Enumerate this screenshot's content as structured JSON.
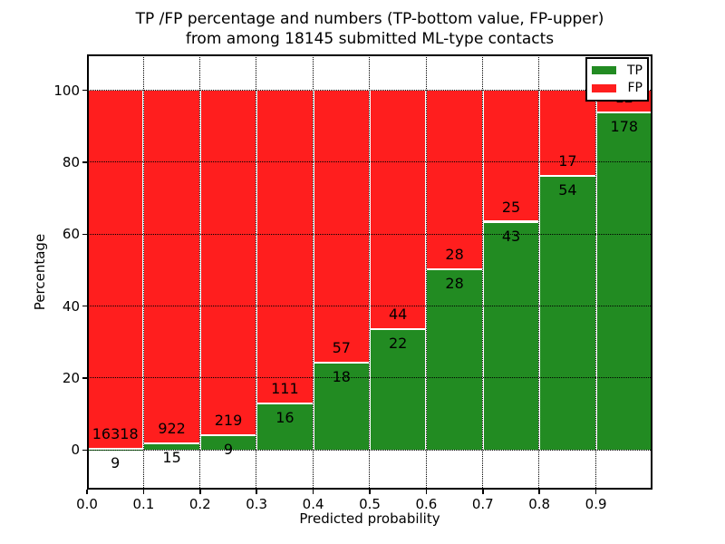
{
  "chart_data": {
    "type": "bar",
    "stacked": true,
    "percent_stacked": true,
    "title_lines": [
      "TP /FP percentage and numbers (TP-bottom value, FP-upper)",
      "from among 18145 submitted ML-type contacts"
    ],
    "xlabel": "Predicted probability",
    "ylabel": "Percentage",
    "total_submitted": 18145,
    "bin_edges": [
      0.0,
      0.1,
      0.2,
      0.3,
      0.4,
      0.5,
      0.6,
      0.7,
      0.8,
      0.9,
      1.0
    ],
    "series": [
      {
        "name": "TP",
        "color": "#228b22",
        "counts": [
          9,
          15,
          9,
          16,
          18,
          22,
          28,
          43,
          54,
          178
        ]
      },
      {
        "name": "FP",
        "color": "#ff1e1e",
        "counts": [
          16318,
          922,
          219,
          111,
          57,
          44,
          28,
          25,
          17,
          12
        ]
      }
    ],
    "tp_percent_by_bin": [
      0.06,
      1.6,
      3.95,
      12.6,
      24.0,
      33.33,
      50.0,
      63.24,
      76.06,
      93.68
    ],
    "xticks": [
      "0.0",
      "0.1",
      "0.2",
      "0.3",
      "0.4",
      "0.5",
      "0.6",
      "0.7",
      "0.8",
      "0.9"
    ],
    "ytick_values": [
      0,
      20,
      40,
      60,
      80,
      100
    ],
    "ytick_labels": [
      "0",
      "20",
      "40",
      "60",
      "80",
      "100"
    ],
    "xlim": [
      0.0,
      1.0
    ],
    "ylim": [
      -11,
      110
    ],
    "grid": true,
    "grid_linestyle": "dotted",
    "bar_edge_color": "#ffffff",
    "legend": {
      "position": "upper right",
      "entries": [
        {
          "label": "TP",
          "color": "#228b22"
        },
        {
          "label": "FP",
          "color": "#ff1e1e"
        }
      ]
    }
  }
}
